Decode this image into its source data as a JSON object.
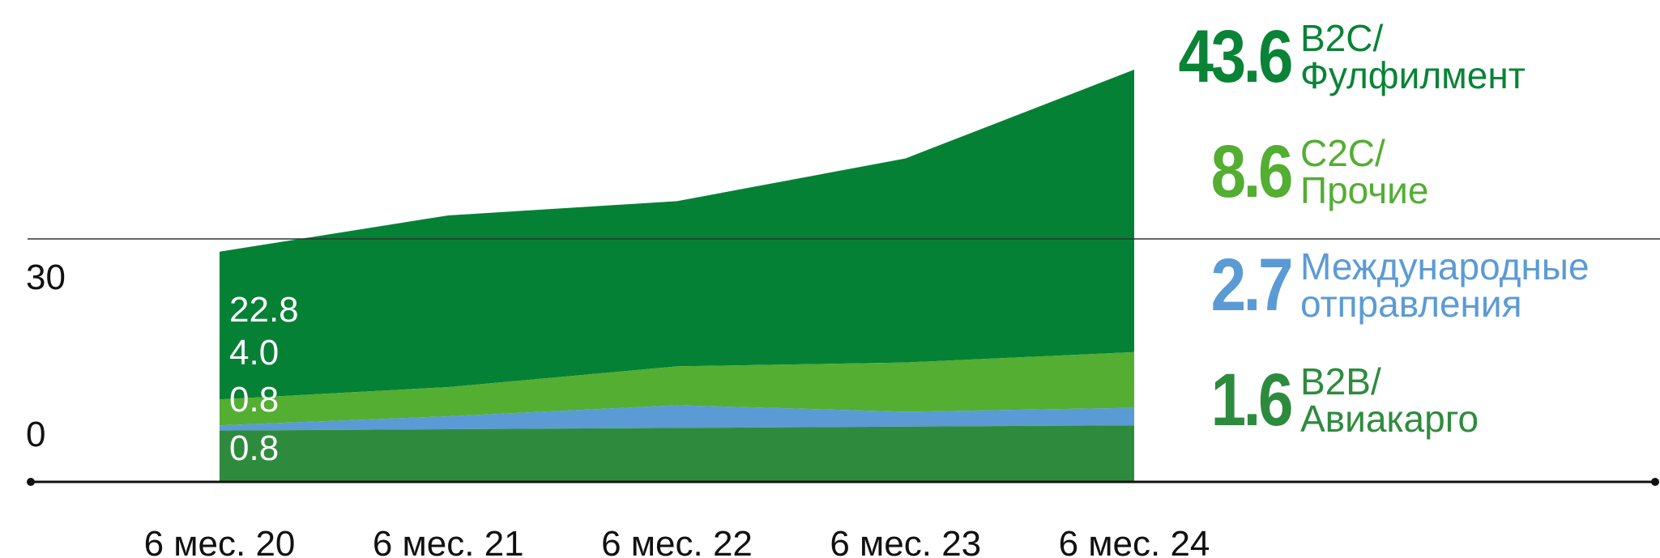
{
  "chart_data": {
    "type": "area",
    "categories": [
      "6 мес. 20",
      "6 мес. 21",
      "6 мес. 22",
      "6 мес. 23",
      "6 мес. 24"
    ],
    "y_ticks": [
      "30",
      "0"
    ],
    "stacking": "stacked",
    "series": [
      {
        "name": "B2B/Авиакарго",
        "values": [
          0.8,
          1.0,
          1.2,
          1.4,
          1.6
        ],
        "color": "#2e8b3e"
      },
      {
        "name": "Международные отправления",
        "values": [
          0.8,
          2.0,
          3.5,
          2.3,
          2.7
        ],
        "color": "#5b9bd5"
      },
      {
        "name": "C2C/Прочие",
        "values": [
          4.0,
          4.5,
          6.0,
          7.6,
          8.6
        ],
        "color": "#53ae32"
      },
      {
        "name": "B2C/Фулфилмент",
        "values": [
          22.8,
          26.5,
          25.5,
          31.5,
          43.6
        ],
        "color": "#058136"
      }
    ],
    "first_point_labels": [
      "22.8",
      "4.0",
      "0.8",
      "0.8"
    ],
    "ylim": [
      -7,
      61
    ],
    "grid": false
  },
  "legend": [
    {
      "value": "43.6",
      "line1": "B2C/",
      "line2": "Фулфилмент",
      "color": "#0a8336"
    },
    {
      "value": "8.6",
      "line1": "C2C/",
      "line2": "Прочие",
      "color": "#53ae32"
    },
    {
      "value": "2.7",
      "line1": "Международные",
      "line2": "отправления",
      "color": "#5b9bd5"
    },
    {
      "value": "1.6",
      "line1": "B2B/",
      "line2": "Авиакарго",
      "color": "#2e8b3e"
    }
  ]
}
